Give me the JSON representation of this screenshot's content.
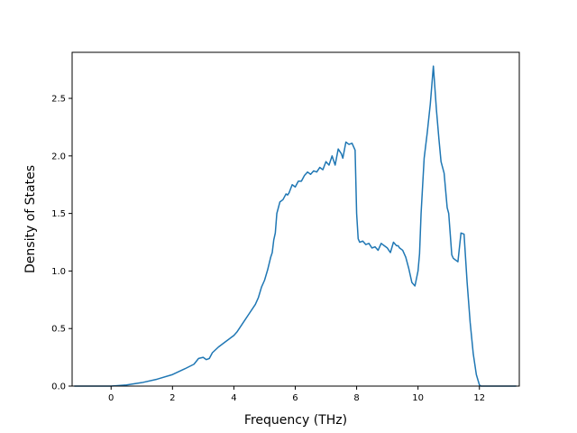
{
  "chart_data": {
    "type": "line",
    "xlabel": "Frequency (THz)",
    "ylabel": "Density of States",
    "xlim": [
      -1.27,
      13.3
    ],
    "ylim": [
      0,
      2.9
    ],
    "xticks": [
      0,
      2,
      4,
      6,
      8,
      10,
      12
    ],
    "xtick_labels": [
      "0",
      "2",
      "4",
      "6",
      "8",
      "10",
      "12"
    ],
    "yticks": [
      0.0,
      0.5,
      1.0,
      1.5,
      2.0,
      2.5
    ],
    "ytick_labels": [
      "0.0",
      "0.5",
      "1.0",
      "1.5",
      "2.0",
      "2.5"
    ],
    "grid": false,
    "line_color": "#1f77b4",
    "series": [
      {
        "x": [
          -1.2,
          -0.5,
          0.0,
          0.5,
          1.0,
          1.5,
          2.0,
          2.4,
          2.7,
          2.85,
          3.0,
          3.1,
          3.2,
          3.3,
          3.5,
          3.7,
          3.9,
          4.0,
          4.1,
          4.3,
          4.5,
          4.7,
          4.8,
          4.9,
          5.0,
          5.1,
          5.2,
          5.25,
          5.3,
          5.35,
          5.4,
          5.5,
          5.6,
          5.7,
          5.75,
          5.8,
          5.9,
          6.0,
          6.1,
          6.2,
          6.3,
          6.4,
          6.5,
          6.6,
          6.7,
          6.8,
          6.9,
          7.0,
          7.1,
          7.2,
          7.3,
          7.4,
          7.5,
          7.55,
          7.65,
          7.75,
          7.85,
          7.95,
          8.0,
          8.05,
          8.1,
          8.2,
          8.3,
          8.4,
          8.5,
          8.6,
          8.7,
          8.8,
          8.9,
          9.0,
          9.1,
          9.2,
          9.3,
          9.35,
          9.4,
          9.5,
          9.6,
          9.7,
          9.8,
          9.9,
          10.0,
          10.05,
          10.1,
          10.2,
          10.3,
          10.4,
          10.5,
          10.6,
          10.68,
          10.75,
          10.85,
          10.95,
          11.0,
          11.1,
          11.15,
          11.3,
          11.4,
          11.5,
          11.6,
          11.7,
          11.8,
          11.9,
          12.0,
          12.05,
          12.2,
          13.2
        ],
        "y": [
          0.0,
          0.0,
          0.0,
          0.01,
          0.03,
          0.06,
          0.1,
          0.15,
          0.19,
          0.24,
          0.25,
          0.23,
          0.24,
          0.29,
          0.34,
          0.38,
          0.42,
          0.44,
          0.47,
          0.55,
          0.63,
          0.71,
          0.77,
          0.86,
          0.92,
          1.01,
          1.12,
          1.16,
          1.27,
          1.33,
          1.5,
          1.6,
          1.62,
          1.67,
          1.66,
          1.68,
          1.75,
          1.73,
          1.78,
          1.78,
          1.83,
          1.86,
          1.84,
          1.87,
          1.86,
          1.9,
          1.88,
          1.95,
          1.92,
          2.0,
          1.92,
          2.06,
          2.02,
          1.98,
          2.12,
          2.1,
          2.11,
          2.05,
          1.5,
          1.28,
          1.25,
          1.26,
          1.23,
          1.24,
          1.2,
          1.21,
          1.18,
          1.24,
          1.22,
          1.2,
          1.16,
          1.25,
          1.22,
          1.22,
          1.2,
          1.18,
          1.12,
          1.02,
          0.9,
          0.87,
          1.0,
          1.15,
          1.5,
          1.98,
          2.2,
          2.45,
          2.78,
          2.4,
          2.15,
          1.95,
          1.85,
          1.55,
          1.5,
          1.14,
          1.11,
          1.08,
          1.33,
          1.32,
          0.9,
          0.55,
          0.28,
          0.1,
          0.01,
          0.0,
          0.0,
          0.0
        ]
      }
    ]
  }
}
